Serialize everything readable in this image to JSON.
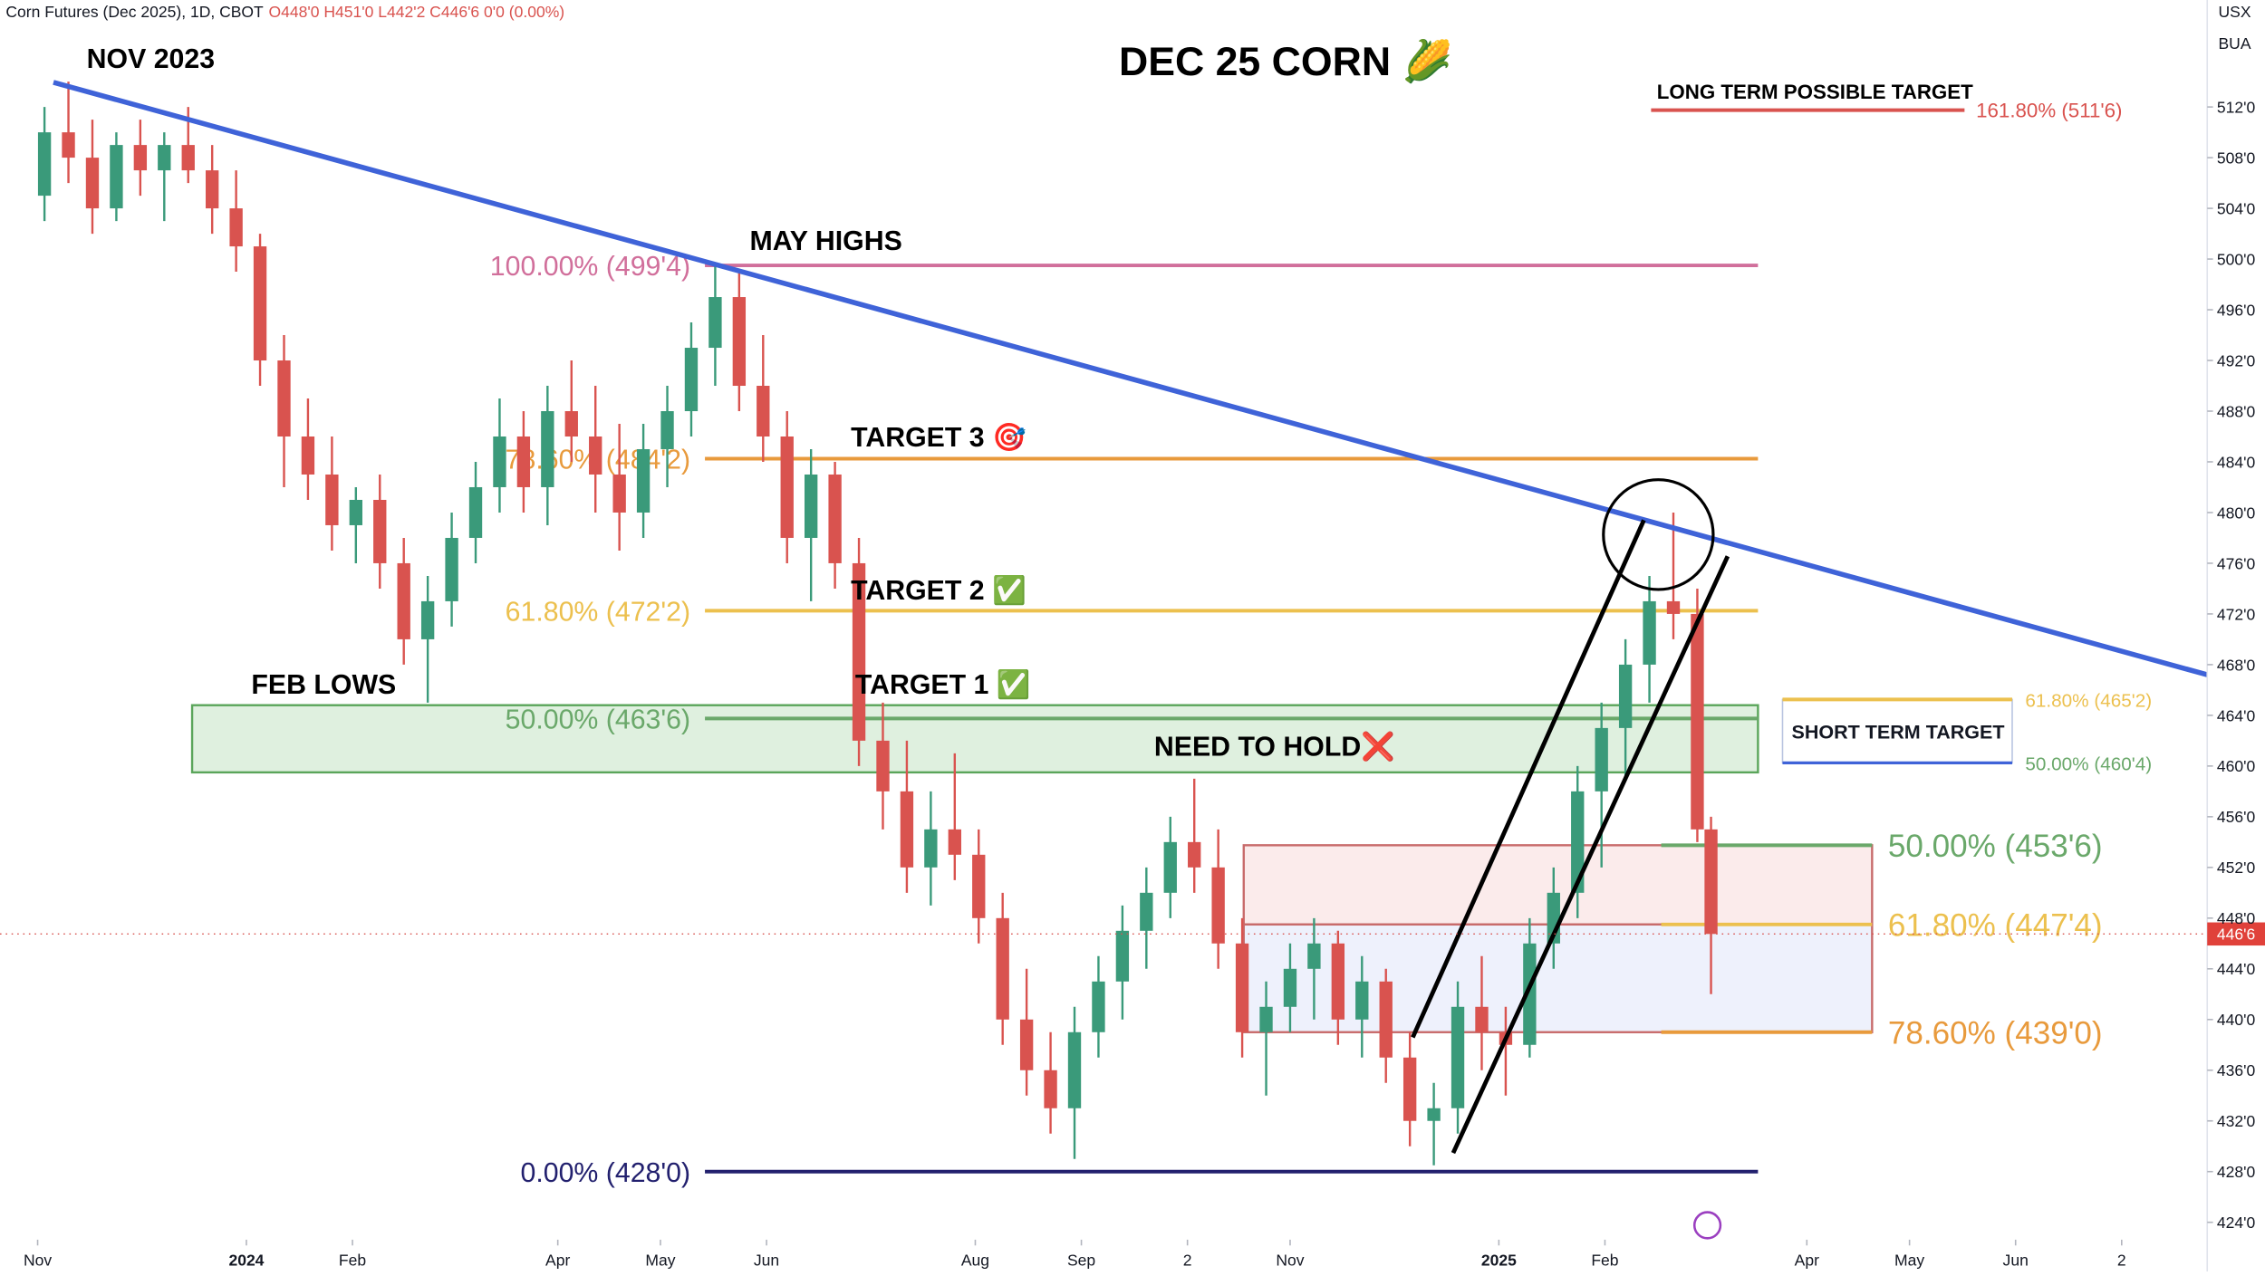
{
  "chart_data": {
    "type": "candlestick",
    "title": "DEC 25 CORN 🌽",
    "header": "Corn Futures (Dec 2025), 1D, CBOT",
    "header_ohlc": "O448'0  H451'0  L442'2  C446'6  0'0 (0.00%)",
    "axis_corner": [
      "USX",
      "BUA"
    ],
    "up_color": "#3a9a7a",
    "down_color": "#d9534f",
    "x": [
      "2023-11-03",
      "2023-11-10",
      "2023-11-17",
      "2023-11-24",
      "2023-12-01",
      "2023-12-08",
      "2023-12-15",
      "2023-12-22",
      "2023-12-29",
      "2024-01-05",
      "2024-01-12",
      "2024-01-19",
      "2024-01-26",
      "2024-02-02",
      "2024-02-09",
      "2024-02-16",
      "2024-02-23",
      "2024-03-01",
      "2024-03-08",
      "2024-03-15",
      "2024-03-22",
      "2024-03-29",
      "2024-04-05",
      "2024-04-12",
      "2024-04-19",
      "2024-04-26",
      "2024-05-03",
      "2024-05-10",
      "2024-05-17",
      "2024-05-24",
      "2024-05-31",
      "2024-06-07",
      "2024-06-14",
      "2024-06-21",
      "2024-06-28",
      "2024-07-05",
      "2024-07-12",
      "2024-07-19",
      "2024-07-26",
      "2024-08-02",
      "2024-08-09",
      "2024-08-16",
      "2024-08-23",
      "2024-08-30",
      "2024-09-06",
      "2024-09-13",
      "2024-09-20",
      "2024-09-27",
      "2024-10-04",
      "2024-10-11",
      "2024-10-18",
      "2024-10-25",
      "2024-11-01",
      "2024-11-08",
      "2024-11-15",
      "2024-11-22",
      "2024-11-29",
      "2024-12-06",
      "2024-12-13",
      "2024-12-20",
      "2024-12-27",
      "2025-01-03",
      "2025-01-10",
      "2025-01-17",
      "2025-01-24",
      "2025-01-31",
      "2025-02-07",
      "2025-02-14",
      "2025-02-21",
      "2025-02-28",
      "2025-03-04"
    ],
    "open": [
      505,
      510,
      508,
      504,
      509,
      507,
      509,
      507,
      504,
      501,
      492,
      486,
      483,
      479,
      481,
      476,
      470,
      473,
      478,
      482,
      486,
      482,
      488,
      486,
      483,
      480,
      485,
      488,
      493,
      497,
      490,
      486,
      478,
      483,
      476,
      462,
      458,
      452,
      455,
      453,
      448,
      440,
      436,
      433,
      439,
      443,
      447,
      450,
      454,
      452,
      446,
      439,
      441,
      444,
      446,
      440,
      443,
      437,
      432,
      433,
      441,
      439,
      438,
      446,
      450,
      458,
      463,
      468,
      473,
      472,
      455
    ],
    "high": [
      512,
      514,
      511,
      510,
      511,
      510,
      512,
      509,
      507,
      502,
      494,
      489,
      486,
      482,
      483,
      478,
      475,
      480,
      484,
      489,
      488,
      490,
      492,
      490,
      487,
      487,
      490,
      495,
      499.5,
      499,
      494,
      488,
      485,
      484,
      478,
      465,
      462,
      458,
      461,
      455,
      450,
      444,
      439,
      441,
      445,
      449,
      452,
      456,
      459,
      455,
      448,
      443,
      446,
      448,
      447,
      445,
      444,
      439,
      435,
      443,
      445,
      441,
      448,
      452,
      460,
      465,
      470,
      475,
      480,
      474,
      456
    ],
    "low": [
      503,
      506,
      502,
      503,
      505,
      503,
      506,
      502,
      499,
      490,
      482,
      481,
      477,
      476,
      474,
      468,
      465,
      471,
      476,
      480,
      480,
      479,
      484,
      480,
      477,
      478,
      482,
      486,
      490,
      488,
      484,
      476,
      473,
      474,
      460,
      455,
      450,
      449,
      451,
      446,
      438,
      434,
      431,
      429,
      437,
      440,
      444,
      448,
      450,
      444,
      437,
      434,
      439,
      440,
      438,
      437,
      435,
      430,
      428.5,
      431,
      436,
      434,
      437,
      444,
      448,
      452,
      459,
      465,
      470,
      454,
      442
    ],
    "close": [
      510,
      508,
      504,
      509,
      507,
      509,
      507,
      504,
      501,
      492,
      486,
      483,
      479,
      481,
      476,
      470,
      473,
      478,
      482,
      486,
      482,
      488,
      486,
      483,
      480,
      485,
      488,
      493,
      497,
      490,
      486,
      478,
      483,
      476,
      462,
      458,
      452,
      455,
      453,
      448,
      440,
      436,
      433,
      439,
      443,
      447,
      450,
      454,
      452,
      446,
      439,
      441,
      444,
      446,
      440,
      443,
      437,
      432,
      433,
      441,
      439,
      438,
      446,
      450,
      458,
      463,
      468,
      473,
      472,
      455,
      446.75
    ],
    "xlim": [
      "2023-10-21",
      "2025-07-27"
    ],
    "xticks": [
      {
        "value": "2023-11-01",
        "label": "Nov"
      },
      {
        "value": "2024-01-01",
        "label": "2024"
      },
      {
        "value": "2024-02-01",
        "label": "Feb"
      },
      {
        "value": "2024-04-01",
        "label": "Apr"
      },
      {
        "value": "2024-05-01",
        "label": "May"
      },
      {
        "value": "2024-06-01",
        "label": "Jun"
      },
      {
        "value": "2024-08-01",
        "label": "Aug"
      },
      {
        "value": "2024-09-01",
        "label": "Sep"
      },
      {
        "value": "2024-10-02",
        "label": "2"
      },
      {
        "value": "2024-11-01",
        "label": "Nov"
      },
      {
        "value": "2025-01-01",
        "label": "2025"
      },
      {
        "value": "2025-02-01",
        "label": "Feb"
      },
      {
        "value": "2025-04-01",
        "label": "Apr"
      },
      {
        "value": "2025-05-01",
        "label": "May"
      },
      {
        "value": "2025-06-01",
        "label": "Jun"
      },
      {
        "value": "2025-07-02",
        "label": "2"
      }
    ],
    "ylim": [
      420.12,
      520.44
    ],
    "yticks": [
      {
        "value": 424,
        "label": "424'0"
      },
      {
        "value": 428,
        "label": "428'0"
      },
      {
        "value": 432,
        "label": "432'0"
      },
      {
        "value": 436,
        "label": "436'0"
      },
      {
        "value": 440,
        "label": "440'0"
      },
      {
        "value": 444,
        "label": "444'0"
      },
      {
        "value": 448,
        "label": "448'0"
      },
      {
        "value": 452,
        "label": "452'0"
      },
      {
        "value": 456,
        "label": "456'0"
      },
      {
        "value": 460,
        "label": "460'0"
      },
      {
        "value": 464,
        "label": "464'0"
      },
      {
        "value": 468,
        "label": "468'0"
      },
      {
        "value": 472,
        "label": "472'0"
      },
      {
        "value": 476,
        "label": "476'0"
      },
      {
        "value": 480,
        "label": "480'0"
      },
      {
        "value": 484,
        "label": "484'0"
      },
      {
        "value": 488,
        "label": "488'0"
      },
      {
        "value": 492,
        "label": "492'0"
      },
      {
        "value": 496,
        "label": "496'0"
      },
      {
        "value": 500,
        "label": "500'0"
      },
      {
        "value": 504,
        "label": "504'0"
      },
      {
        "value": 508,
        "label": "508'0"
      },
      {
        "value": 512,
        "label": "512'0"
      }
    ],
    "last_price": {
      "value": 446.75,
      "label": "446'6"
    },
    "fib_levels": [
      {
        "value": 499.5,
        "label": "100.00% (499'4)",
        "color": "#d16f9b"
      },
      {
        "value": 484.25,
        "label": "78.60% (484'2)",
        "color": "#e89a3c"
      },
      {
        "value": 472.25,
        "label": "61.80% (472'2)",
        "color": "#ecc04e"
      },
      {
        "value": 463.75,
        "label": "50.00% (463'6)",
        "color": "#6aa86a"
      },
      {
        "value": 428,
        "label": "0.00% (428'0)",
        "color": "#22206e"
      }
    ],
    "retrace_levels": [
      {
        "value": 453.75,
        "label": "50.00% (453'6)",
        "color": "#6aa86a"
      },
      {
        "value": 447.5,
        "label": "61.80% (447'4)",
        "color": "#ecc04e"
      },
      {
        "value": 439,
        "label": "78.60% (439'0)",
        "color": "#e89a3c"
      }
    ],
    "zones": [
      {
        "low": 459.5,
        "high": 464.8,
        "fill": "rgba(110,185,110,0.22)",
        "color": "#5aa55a"
      },
      {
        "low": 447.5,
        "high": 453.75,
        "fill": "rgba(230,120,120,0.15)",
        "color": "#c86b6b"
      },
      {
        "low": 439,
        "high": 447.5,
        "fill": "rgba(120,150,230,0.13)",
        "color": "#c86b6b"
      }
    ],
    "short_term": {
      "title": "SHORT TERM TARGET",
      "top": {
        "value": 465.25,
        "label": "61.80% (465'2)",
        "color": "#ecc04e"
      },
      "bottom": {
        "value": 460.25,
        "label": "50.00% (460'4)",
        "color": "#6aa86a"
      }
    },
    "long_term": {
      "title": "LONG TERM POSSIBLE TARGET",
      "value": 511.75,
      "label": "161.80% (511'6)",
      "color": "#d9534f"
    },
    "annotations": [
      "NOV 2023",
      "MAY HIGHS",
      "TARGET 3 🎯",
      "TARGET 2 ✅",
      "TARGET 1 ✅",
      "FEB LOWS",
      "NEED TO HOLD❌"
    ]
  }
}
